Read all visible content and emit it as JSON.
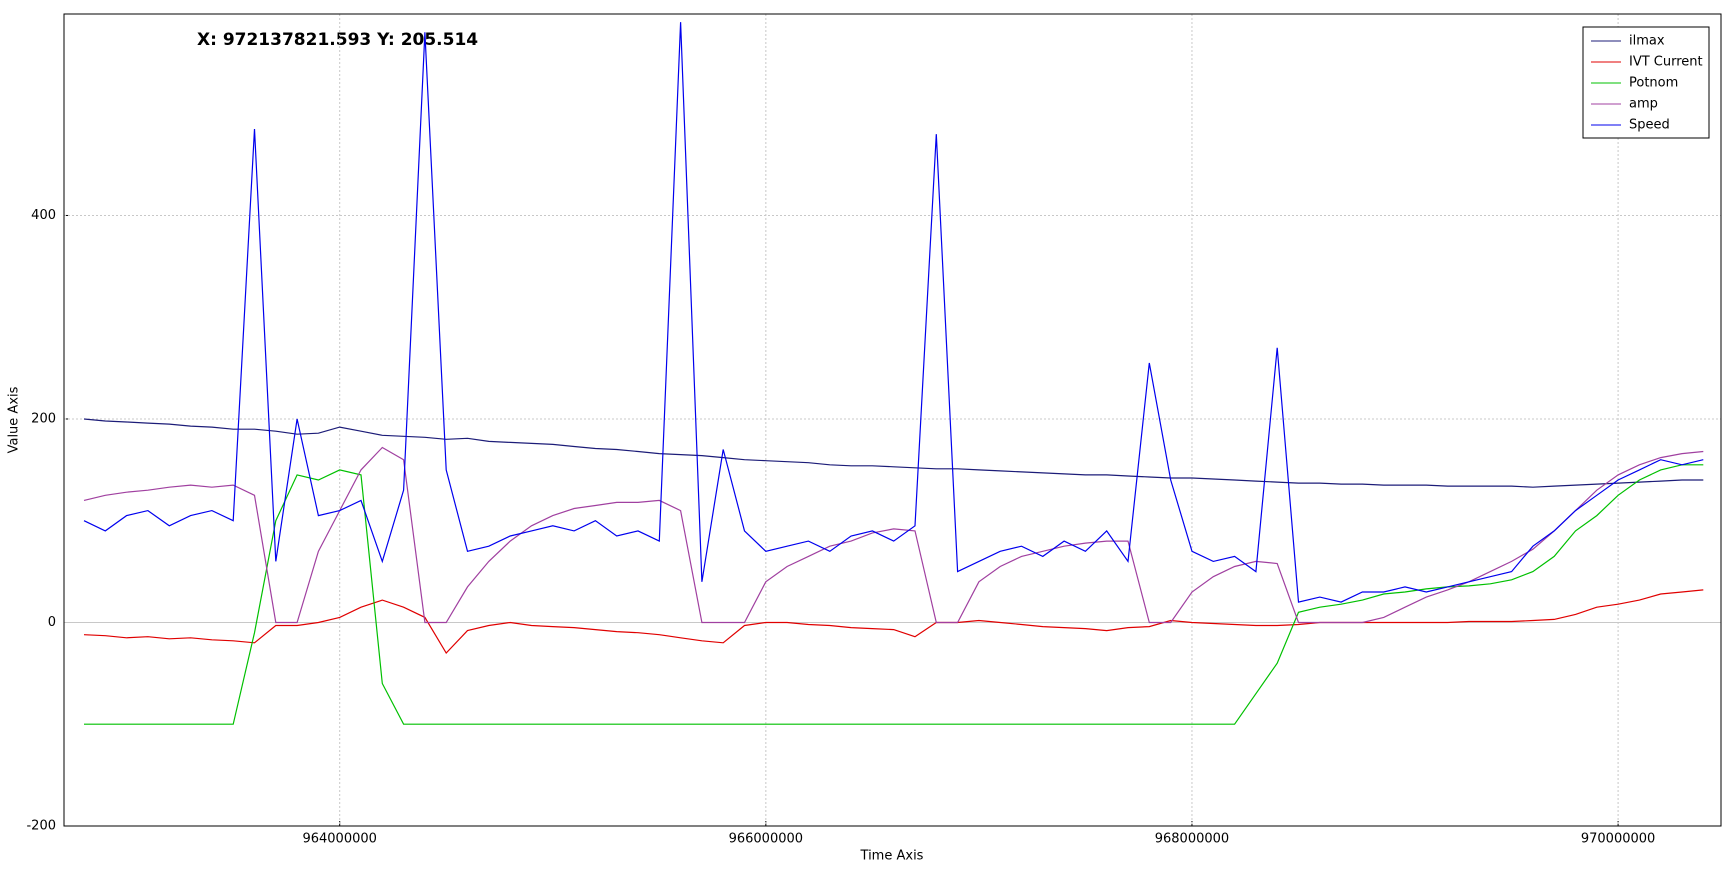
{
  "chart_data": {
    "type": "line",
    "readout": "X: 972137821.593 Y: 205.514",
    "x_label": "Time Axis",
    "y_label": "Value Axis",
    "xlim": [
      962706000,
      970483000
    ],
    "ylim": [
      -200,
      598
    ],
    "xticks": [
      964000000,
      966000000,
      968000000,
      970000000
    ],
    "yticks": [
      -200,
      0,
      200,
      400
    ],
    "grid": true,
    "legend": "upper right",
    "x": [
      962800000,
      962900000,
      963000000,
      963100000,
      963200000,
      963300000,
      963400000,
      963500000,
      963600000,
      963700000,
      963800000,
      963900000,
      964000000,
      964100000,
      964200000,
      964300000,
      964400000,
      964500000,
      964600000,
      964700000,
      964800000,
      964900000,
      965000000,
      965100000,
      965200000,
      965300000,
      965400000,
      965500000,
      965600000,
      965700000,
      965800000,
      965900000,
      966000000,
      966100000,
      966200000,
      966300000,
      966400000,
      966500000,
      966600000,
      966700000,
      966800000,
      966900000,
      967000000,
      967100000,
      967200000,
      967300000,
      967400000,
      967500000,
      967600000,
      967700000,
      967800000,
      967900000,
      968000000,
      968100000,
      968200000,
      968300000,
      968400000,
      968500000,
      968600000,
      968700000,
      968800000,
      968900000,
      969000000,
      969100000,
      969200000,
      969300000,
      969400000,
      969500000,
      969600000,
      969700000,
      969800000,
      969900000,
      970000000,
      970100000,
      970200000,
      970300000,
      970400000
    ],
    "series": [
      {
        "name": "ilmax",
        "color": "#1c1c78",
        "values": [
          200,
          198,
          197,
          196,
          195,
          193,
          192,
          190,
          190,
          188,
          185,
          186,
          192,
          188,
          184,
          183,
          182,
          180,
          181,
          178,
          177,
          176,
          175,
          173,
          171,
          170,
          168,
          166,
          165,
          164,
          162,
          160,
          159,
          158,
          157,
          155,
          154,
          154,
          153,
          152,
          151,
          151,
          150,
          149,
          148,
          147,
          146,
          145,
          145,
          144,
          143,
          142,
          142,
          141,
          140,
          139,
          138,
          137,
          137,
          136,
          136,
          135,
          135,
          135,
          134,
          134,
          134,
          134,
          133,
          134,
          135,
          136,
          137,
          138,
          139,
          140,
          140
        ]
      },
      {
        "name": "IVT Current",
        "color": "#e00000",
        "values": [
          -12,
          -13,
          -15,
          -14,
          -16,
          -15,
          -17,
          -18,
          -20,
          -3,
          -3,
          0,
          5,
          15,
          22,
          15,
          5,
          -30,
          -8,
          -3,
          0,
          -3,
          -4,
          -5,
          -7,
          -9,
          -10,
          -12,
          -15,
          -18,
          -20,
          -3,
          0,
          0,
          -2,
          -3,
          -5,
          -6,
          -7,
          -14,
          0,
          0,
          2,
          0,
          -2,
          -4,
          -5,
          -6,
          -8,
          -5,
          -4,
          2,
          0,
          -1,
          -2,
          -3,
          -3,
          -2,
          0,
          0,
          0,
          0,
          0,
          0,
          0,
          1,
          1,
          1,
          2,
          3,
          8,
          15,
          18,
          22,
          28,
          30,
          32
        ]
      },
      {
        "name": "Potnom",
        "color": "#00c000",
        "values": [
          -100,
          -100,
          -100,
          -100,
          -100,
          -100,
          -100,
          -100,
          -10,
          100,
          145,
          140,
          150,
          145,
          -60,
          -100,
          -100,
          -100,
          -100,
          -100,
          -100,
          -100,
          -100,
          -100,
          -100,
          -100,
          -100,
          -100,
          -100,
          -100,
          -100,
          -100,
          -100,
          -100,
          -100,
          -100,
          -100,
          -100,
          -100,
          -100,
          -100,
          -100,
          -100,
          -100,
          -100,
          -100,
          -100,
          -100,
          -100,
          -100,
          -100,
          -100,
          -100,
          -100,
          -100,
          -70,
          -40,
          10,
          15,
          18,
          22,
          28,
          30,
          33,
          35,
          36,
          38,
          42,
          50,
          65,
          90,
          105,
          125,
          140,
          150,
          155,
          155
        ]
      },
      {
        "name": "amp",
        "color": "#a040a0",
        "values": [
          120,
          125,
          128,
          130,
          133,
          135,
          133,
          135,
          125,
          0,
          0,
          70,
          110,
          150,
          172,
          160,
          0,
          0,
          35,
          60,
          80,
          95,
          105,
          112,
          115,
          118,
          118,
          120,
          110,
          0,
          0,
          0,
          40,
          55,
          65,
          75,
          80,
          88,
          92,
          90,
          0,
          0,
          40,
          55,
          65,
          70,
          75,
          78,
          80,
          80,
          0,
          0,
          30,
          45,
          55,
          60,
          58,
          0,
          0,
          0,
          0,
          5,
          15,
          25,
          32,
          40,
          50,
          60,
          72,
          90,
          110,
          130,
          145,
          155,
          162,
          166,
          168
        ]
      },
      {
        "name": "Speed",
        "color": "#0000ee",
        "values": [
          100,
          90,
          105,
          110,
          95,
          105,
          110,
          100,
          485,
          60,
          200,
          105,
          110,
          120,
          60,
          130,
          580,
          150,
          70,
          75,
          85,
          90,
          95,
          90,
          100,
          85,
          90,
          80,
          590,
          40,
          170,
          90,
          70,
          75,
          80,
          70,
          85,
          90,
          80,
          95,
          480,
          50,
          60,
          70,
          75,
          65,
          80,
          70,
          90,
          60,
          255,
          140,
          70,
          60,
          65,
          50,
          270,
          20,
          25,
          20,
          30,
          30,
          35,
          30,
          35,
          40,
          45,
          50,
          75,
          90,
          110,
          125,
          140,
          150,
          160,
          155,
          160
        ]
      }
    ]
  }
}
